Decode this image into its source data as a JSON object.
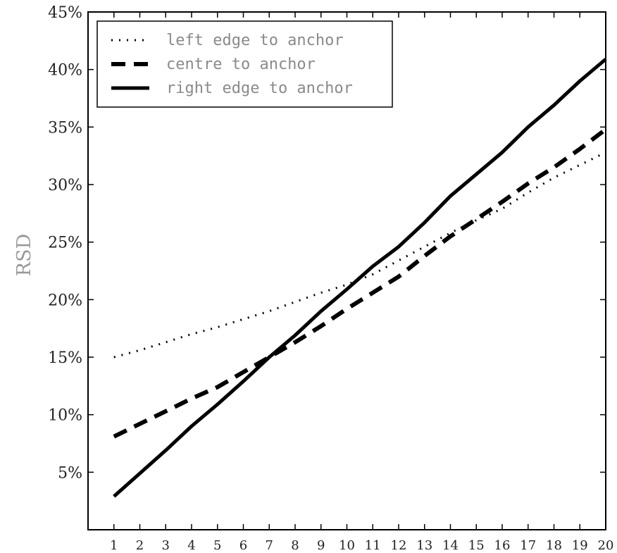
{
  "chart_data": {
    "type": "line",
    "title": "",
    "xlabel": "",
    "ylabel": "RSD",
    "x": [
      1,
      2,
      3,
      4,
      5,
      6,
      7,
      8,
      9,
      10,
      11,
      12,
      13,
      14,
      15,
      16,
      17,
      18,
      19,
      20
    ],
    "xlim": [
      0,
      20
    ],
    "ylim": [
      0,
      45
    ],
    "yticks": [
      5,
      10,
      15,
      20,
      25,
      30,
      35,
      40,
      45
    ],
    "ytick_labels": [
      "5%",
      "10%",
      "15%",
      "20%",
      "25%",
      "30%",
      "35%",
      "40%",
      "45%"
    ],
    "xtick_labels": [
      "1",
      "2",
      "3",
      "4",
      "5",
      "6",
      "7",
      "8",
      "9",
      "10",
      "11",
      "12",
      "13",
      "14",
      "15",
      "16",
      "17",
      "18",
      "19",
      "20"
    ],
    "grid": false,
    "legend_position": "top-left",
    "series": [
      {
        "name": "left edge to anchor",
        "style": "dotted",
        "color": "#000000",
        "values": [
          15.0,
          15.6,
          16.3,
          17.0,
          17.6,
          18.3,
          19.0,
          19.8,
          20.6,
          21.3,
          22.2,
          23.4,
          24.6,
          25.8,
          26.9,
          27.9,
          29.3,
          30.6,
          31.7,
          32.8
        ]
      },
      {
        "name": "centre to anchor",
        "style": "dashed",
        "color": "#000000",
        "values": [
          8.1,
          9.2,
          10.3,
          11.4,
          12.4,
          13.7,
          15.0,
          16.3,
          17.7,
          19.2,
          20.6,
          22.0,
          23.8,
          25.5,
          27.0,
          28.5,
          30.1,
          31.5,
          33.1,
          34.8
        ]
      },
      {
        "name": "right edge to anchor",
        "style": "solid",
        "color": "#000000",
        "values": [
          2.9,
          4.9,
          6.9,
          9.0,
          10.9,
          12.9,
          15.0,
          16.9,
          19.0,
          20.9,
          22.9,
          24.6,
          26.7,
          29.0,
          30.9,
          32.8,
          35.0,
          36.9,
          39.0,
          40.9
        ]
      }
    ]
  }
}
